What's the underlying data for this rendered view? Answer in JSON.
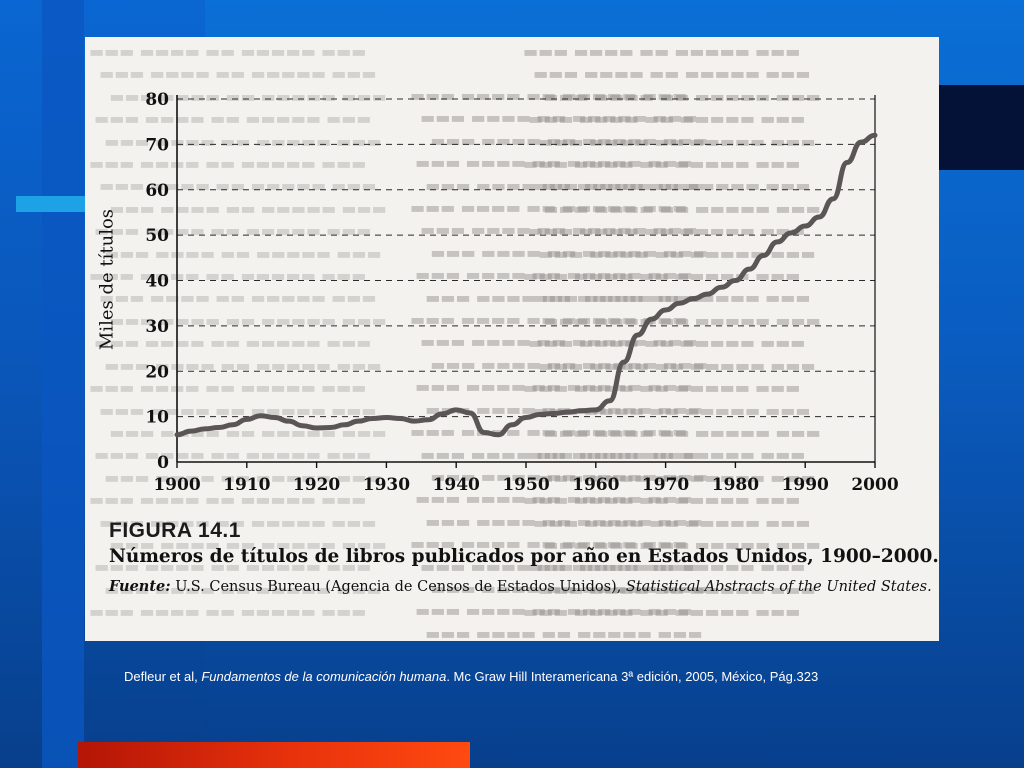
{
  "chart_data": {
    "type": "line",
    "ylabel": "Miles de títulos",
    "xlabel": "",
    "xlim": [
      1900,
      2000
    ],
    "ylim": [
      0,
      80
    ],
    "x_ticks": [
      "1900",
      "1910",
      "1920",
      "1930",
      "1940",
      "1950",
      "1960",
      "1970",
      "1980",
      "1990",
      "2000"
    ],
    "y_ticks": [
      "0",
      "10",
      "20",
      "30",
      "40",
      "50",
      "60",
      "70",
      "80"
    ],
    "grid": "horizontal dashed",
    "series": [
      {
        "x": [
          1900,
          1902,
          1904,
          1906,
          1908,
          1910,
          1912,
          1914,
          1916,
          1918,
          1920,
          1922,
          1924,
          1926,
          1928,
          1930,
          1932,
          1934,
          1936,
          1938,
          1940,
          1942,
          1944,
          1946,
          1948,
          1950,
          1952,
          1954,
          1956,
          1958,
          1960,
          1962,
          1964,
          1966,
          1968,
          1970,
          1972,
          1974,
          1976,
          1978,
          1980,
          1982,
          1984,
          1986,
          1988,
          1990,
          1992,
          1994,
          1996,
          1998,
          2000
        ],
        "y": [
          6,
          6.8,
          7.3,
          7.6,
          8.2,
          9.4,
          10.2,
          9.8,
          9.0,
          8.0,
          7.5,
          7.6,
          8.2,
          9.0,
          9.6,
          9.8,
          9.6,
          9.0,
          9.3,
          10.6,
          11.5,
          10.8,
          6.5,
          6.0,
          8.2,
          9.8,
          10.5,
          10.7,
          11.0,
          11.3,
          11.5,
          13.5,
          22.0,
          28.0,
          31.5,
          33.5,
          35.0,
          36.0,
          37.0,
          38.5,
          40.0,
          42.5,
          45.5,
          48.5,
          50.5,
          52.0,
          54.0,
          58.0,
          66.0,
          70.5,
          72.0
        ]
      }
    ]
  },
  "figure": {
    "number": "FIGURA 14.1",
    "caption": "Números de títulos de libros publicados por año en Estados Unidos, 1900–2000.",
    "source_label": "Fuente:",
    "source_text": " U.S. Census Bureau (Agencia de Censos de Estados Unidos), ",
    "source_pub": "Statistical Abstracts of the United States."
  },
  "citation": {
    "authors": "Defleur et al, ",
    "book_title": "Fundamentos de la comunicación humana",
    "rest": ". Mc Graw Hill Interamericana 3ª edición, 2005, México, Pág.323"
  },
  "colors": {
    "background": "#0a5cc0",
    "accent_orange": "#e8320c",
    "accent_cyan": "#1ea2e6",
    "scan_paper": "#f3f2ef",
    "line": "#5a5656"
  }
}
